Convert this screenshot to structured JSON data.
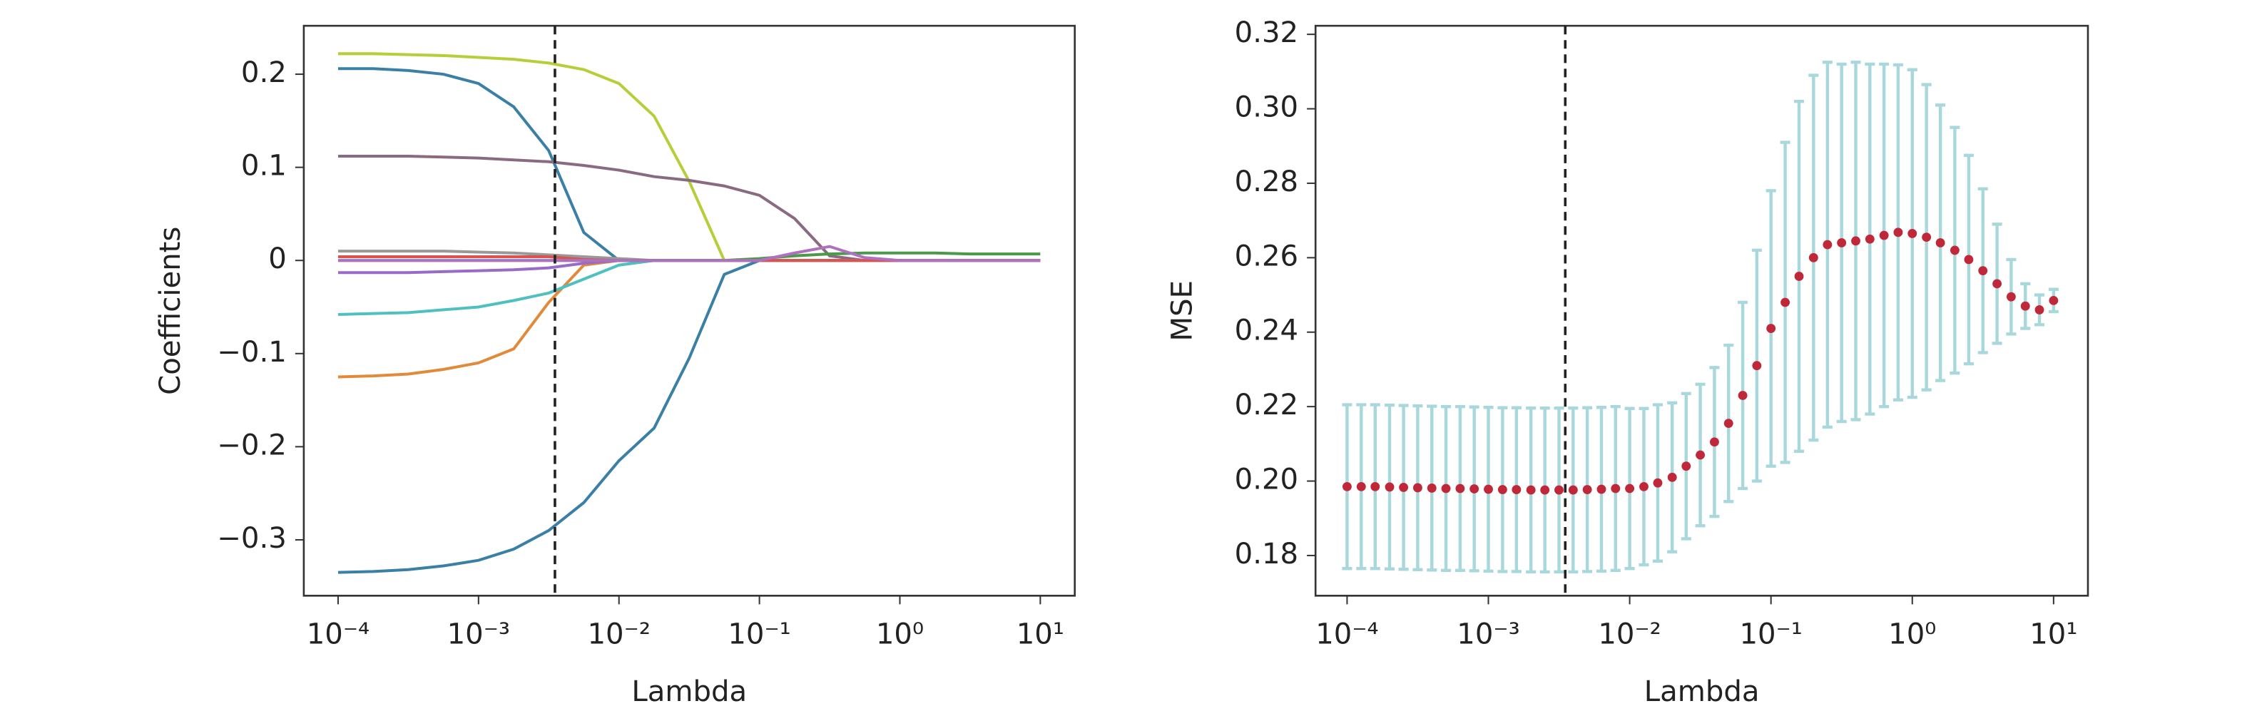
{
  "chart_data": [
    {
      "type": "line",
      "xlabel": "Lambda",
      "ylabel": "Coefficients",
      "xscale": "log",
      "x": [
        0.0001,
        0.000178,
        0.000316,
        0.000562,
        0.001,
        0.00178,
        0.00316,
        0.00562,
        0.01,
        0.0178,
        0.0316,
        0.0562,
        0.1,
        0.178,
        0.316,
        0.562,
        1,
        1.78,
        3.16,
        5.62,
        10
      ],
      "xlim": [
        5.7e-05,
        17.6
      ],
      "ylim": [
        -0.36,
        0.252
      ],
      "xticks": [
        {
          "value": 0.0001,
          "label": "10⁻⁴"
        },
        {
          "value": 0.001,
          "label": "10⁻³"
        },
        {
          "value": 0.01,
          "label": "10⁻²"
        },
        {
          "value": 0.1,
          "label": "10⁻¹"
        },
        {
          "value": 1,
          "label": "10⁰"
        },
        {
          "value": 10,
          "label": "10¹"
        }
      ],
      "yticks": [
        0.2,
        0.1,
        0,
        {
          "value": -0.1,
          "label": "−0.1"
        },
        {
          "value": -0.2,
          "label": "−0.2"
        },
        {
          "value": -0.3,
          "label": "−0.3"
        }
      ],
      "vline": 0.0035,
      "series": [
        {
          "color": "#b5cf3a",
          "values": [
            0.222,
            0.222,
            0.221,
            0.22,
            0.218,
            0.216,
            0.212,
            0.205,
            0.19,
            0.155,
            0.085,
            0,
            0,
            0,
            0,
            0,
            0,
            0,
            0,
            0,
            0
          ]
        },
        {
          "color": "#3a7fa6",
          "values": [
            0.206,
            0.206,
            0.204,
            0.2,
            0.19,
            0.165,
            0.118,
            0.03,
            0,
            0,
            0,
            0,
            0,
            0,
            0,
            0,
            0,
            0,
            0,
            0,
            0
          ]
        },
        {
          "color": "#8a6a80",
          "values": [
            0.112,
            0.112,
            0.112,
            0.111,
            0.11,
            0.108,
            0.106,
            0.102,
            0.097,
            0.09,
            0.086,
            0.08,
            0.07,
            0.045,
            0.005,
            0,
            0,
            0,
            0,
            0,
            0
          ]
        },
        {
          "color": "#3a7fa6",
          "values": [
            -0.335,
            -0.334,
            -0.332,
            -0.328,
            -0.322,
            -0.31,
            -0.29,
            -0.26,
            -0.215,
            -0.18,
            -0.105,
            -0.015,
            0,
            0,
            0,
            0,
            0,
            0,
            0,
            0,
            0
          ]
        },
        {
          "color": "#e08a3a",
          "values": [
            -0.125,
            -0.124,
            -0.122,
            -0.117,
            -0.11,
            -0.095,
            -0.045,
            -0.005,
            0,
            0,
            0,
            0,
            0,
            0,
            0,
            0,
            0,
            0,
            0,
            0,
            0
          ]
        },
        {
          "color": "#4fc0c0",
          "values": [
            -0.058,
            -0.057,
            -0.056,
            -0.053,
            -0.05,
            -0.043,
            -0.035,
            -0.02,
            -0.005,
            0,
            0,
            0,
            0,
            0,
            0,
            0,
            0,
            0,
            0,
            0,
            0
          ]
        },
        {
          "color": "#9a6ac8",
          "values": [
            -0.013,
            -0.013,
            -0.013,
            -0.012,
            -0.011,
            -0.01,
            -0.008,
            -0.003,
            0,
            0,
            0,
            0,
            0,
            0,
            0,
            0,
            0,
            0,
            0,
            0,
            0
          ]
        },
        {
          "color": "#999999",
          "values": [
            0.01,
            0.01,
            0.01,
            0.01,
            0.009,
            0.008,
            0.006,
            0.004,
            0.002,
            0,
            0,
            0,
            0,
            0,
            0,
            0,
            0,
            0,
            0,
            0,
            0
          ]
        },
        {
          "color": "#d9534f",
          "values": [
            0.004,
            0.004,
            0.004,
            0.004,
            0.004,
            0.004,
            0.004,
            0.001,
            0,
            0,
            0,
            0,
            0,
            0,
            0,
            0,
            0,
            0,
            0,
            0,
            0
          ]
        },
        {
          "color": "#4a9a4a",
          "values": [
            0,
            0,
            0,
            0,
            0,
            0,
            0,
            0,
            0,
            0,
            0,
            0,
            0.002,
            0.005,
            0.007,
            0.008,
            0.008,
            0.008,
            0.007,
            0.007,
            0.007
          ]
        },
        {
          "color": "#b070c0",
          "values": [
            0,
            0,
            0,
            0,
            0,
            0,
            0,
            0,
            0,
            0,
            0,
            0,
            0,
            0.008,
            0.015,
            0.003,
            0,
            0,
            0,
            0,
            0
          ]
        }
      ]
    },
    {
      "type": "errorbar",
      "xlabel": "Lambda",
      "ylabel": "MSE",
      "xscale": "log",
      "color": "#c0283a",
      "error_color": "#a8d8dc",
      "x": [
        0.0001,
        0.000126,
        0.000158,
        0.0002,
        0.000251,
        0.000316,
        0.000398,
        0.000501,
        0.000631,
        0.000794,
        0.001,
        0.00126,
        0.00158,
        0.002,
        0.00251,
        0.00316,
        0.00398,
        0.00501,
        0.00631,
        0.00794,
        0.01,
        0.0126,
        0.0158,
        0.02,
        0.0251,
        0.0316,
        0.0398,
        0.0501,
        0.0631,
        0.0794,
        0.1,
        0.126,
        0.158,
        0.2,
        0.251,
        0.316,
        0.398,
        0.501,
        0.631,
        0.794,
        1,
        1.26,
        1.58,
        2,
        2.51,
        3.16,
        3.98,
        5.01,
        6.31,
        7.94,
        10
      ],
      "values": [
        0.1985,
        0.1985,
        0.1985,
        0.1984,
        0.1983,
        0.1982,
        0.1981,
        0.198,
        0.198,
        0.1979,
        0.1978,
        0.1977,
        0.1977,
        0.1976,
        0.1976,
        0.1976,
        0.1976,
        0.1977,
        0.1978,
        0.198,
        0.198,
        0.1985,
        0.1995,
        0.201,
        0.204,
        0.207,
        0.2105,
        0.2155,
        0.223,
        0.231,
        0.241,
        0.248,
        0.255,
        0.26,
        0.2635,
        0.264,
        0.2645,
        0.265,
        0.266,
        0.2668,
        0.2665,
        0.2655,
        0.264,
        0.262,
        0.2595,
        0.2565,
        0.253,
        0.2495,
        0.247,
        0.246,
        0.2485
      ],
      "errors": [
        0.022,
        0.022,
        0.022,
        0.022,
        0.022,
        0.022,
        0.022,
        0.022,
        0.022,
        0.022,
        0.022,
        0.022,
        0.022,
        0.022,
        0.022,
        0.022,
        0.022,
        0.022,
        0.022,
        0.022,
        0.0215,
        0.021,
        0.021,
        0.02,
        0.0195,
        0.019,
        0.02,
        0.021,
        0.025,
        0.031,
        0.037,
        0.043,
        0.047,
        0.049,
        0.049,
        0.048,
        0.048,
        0.047,
        0.046,
        0.045,
        0.044,
        0.041,
        0.037,
        0.033,
        0.028,
        0.022,
        0.016,
        0.01,
        0.006,
        0.004,
        0.003
      ],
      "xlim": [
        5.98e-05,
        17.5
      ],
      "ylim": [
        0.1692,
        0.3223
      ],
      "xticks": [
        {
          "value": 0.0001,
          "label": "10⁻⁴"
        },
        {
          "value": 0.001,
          "label": "10⁻³"
        },
        {
          "value": 0.01,
          "label": "10⁻²"
        },
        {
          "value": 0.1,
          "label": "10⁻¹"
        },
        {
          "value": 1,
          "label": "10⁰"
        },
        {
          "value": 10,
          "label": "10¹"
        }
      ],
      "yticks": [
        0.32,
        {
          "value": 0.3,
          "label": "0.30"
        },
        0.28,
        0.26,
        0.24,
        0.22,
        {
          "value": 0.2,
          "label": "0.20"
        },
        0.18
      ],
      "vline": 0.0035
    }
  ]
}
